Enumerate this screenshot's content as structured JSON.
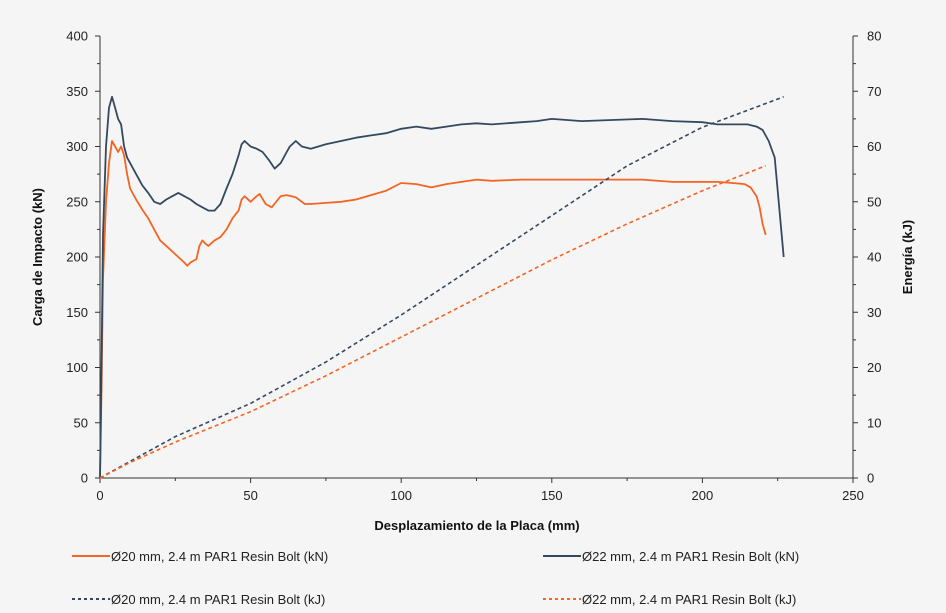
{
  "chart_data": {
    "type": "line",
    "xlabel": "Desplazamiento de la Placa (mm)",
    "ylabel": "Carga de Impacto (kN)",
    "y2label": "Energía (kJ)",
    "xlim": [
      0,
      250
    ],
    "ylim": [
      0,
      400
    ],
    "y2lim": [
      0,
      80
    ],
    "xticks": [
      0,
      50,
      100,
      150,
      200,
      250
    ],
    "yticks": [
      0,
      50,
      100,
      150,
      200,
      250,
      300,
      350,
      400
    ],
    "y2ticks": [
      0,
      10,
      20,
      30,
      40,
      50,
      60,
      70,
      80
    ],
    "grid": false,
    "legend_position": "bottom",
    "series": [
      {
        "name": "Ø20 mm, 2.4 m PAR1 Resin Bolt (kN)",
        "axis": "left",
        "style": "solid",
        "color": "#f26522",
        "x": [
          0,
          0.5,
          1,
          2,
          3,
          4,
          5,
          6,
          7,
          8,
          9,
          10,
          12,
          14,
          16,
          18,
          20,
          22,
          24,
          26,
          28,
          29,
          30,
          32,
          33,
          34,
          35,
          36,
          38,
          40,
          42,
          44,
          46,
          47,
          48,
          50,
          52,
          53,
          55,
          57,
          60,
          62,
          65,
          68,
          70,
          75,
          80,
          85,
          90,
          95,
          100,
          105,
          110,
          115,
          120,
          125,
          130,
          140,
          150,
          160,
          170,
          180,
          190,
          200,
          205,
          210,
          214,
          216,
          218,
          219,
          220,
          221
        ],
        "values": [
          0,
          80,
          180,
          250,
          285,
          305,
          300,
          295,
          300,
          292,
          275,
          262,
          252,
          243,
          235,
          225,
          215,
          210,
          205,
          200,
          195,
          192,
          195,
          198,
          210,
          215,
          212,
          210,
          215,
          218,
          225,
          235,
          242,
          252,
          255,
          250,
          255,
          257,
          248,
          245,
          255,
          256,
          254,
          248,
          248,
          249,
          250,
          252,
          256,
          260,
          267,
          266,
          263,
          266,
          268,
          270,
          269,
          270,
          270,
          270,
          270,
          270,
          268,
          268,
          268,
          267,
          266,
          263,
          255,
          245,
          230,
          220
        ]
      },
      {
        "name": "Ø22 mm, 2.4 m PAR1 Resin Bolt (kN)",
        "axis": "left",
        "style": "solid",
        "color": "#34495e",
        "x": [
          0,
          0.5,
          1,
          2,
          3,
          4,
          5,
          6,
          7,
          8,
          9,
          10,
          12,
          14,
          16,
          18,
          20,
          22,
          24,
          26,
          28,
          30,
          32,
          34,
          36,
          38,
          40,
          42,
          44,
          46,
          47,
          48,
          50,
          52,
          54,
          56,
          58,
          60,
          62,
          63,
          65,
          67,
          70,
          75,
          80,
          85,
          90,
          95,
          100,
          105,
          110,
          115,
          120,
          125,
          130,
          140,
          145,
          150,
          160,
          170,
          180,
          190,
          200,
          205,
          210,
          215,
          218,
          220,
          222,
          224,
          225,
          226,
          227
        ],
        "values": [
          0,
          100,
          220,
          300,
          335,
          345,
          335,
          325,
          320,
          300,
          290,
          285,
          275,
          265,
          258,
          250,
          248,
          252,
          255,
          258,
          255,
          252,
          248,
          245,
          242,
          242,
          248,
          262,
          275,
          292,
          302,
          305,
          300,
          298,
          295,
          288,
          280,
          285,
          295,
          300,
          305,
          300,
          298,
          302,
          305,
          308,
          310,
          312,
          316,
          318,
          316,
          318,
          320,
          321,
          320,
          322,
          323,
          325,
          323,
          324,
          325,
          323,
          322,
          320,
          320,
          320,
          318,
          315,
          305,
          290,
          260,
          230,
          200
        ]
      },
      {
        "name": "Ø20 mm, 2.4 m PAR1 Resin Bolt (kJ)",
        "axis": "right",
        "style": "dashed",
        "color": "#34495e",
        "x": [
          0,
          10,
          25,
          50,
          75,
          100,
          125,
          150,
          175,
          200,
          227
        ],
        "values": [
          0,
          3,
          7.5,
          13.5,
          21,
          29.5,
          38.5,
          47.5,
          56.5,
          63.5,
          69
        ]
      },
      {
        "name": "Ø22 mm, 2.4 m PAR1 Resin Bolt (kJ)",
        "axis": "right",
        "style": "dashed",
        "color": "#f26522",
        "x": [
          0,
          10,
          25,
          50,
          75,
          100,
          125,
          150,
          175,
          200,
          221
        ],
        "values": [
          0,
          2.8,
          6.5,
          12,
          18.5,
          25.5,
          32.5,
          39.5,
          46,
          52,
          56.5
        ]
      }
    ]
  }
}
